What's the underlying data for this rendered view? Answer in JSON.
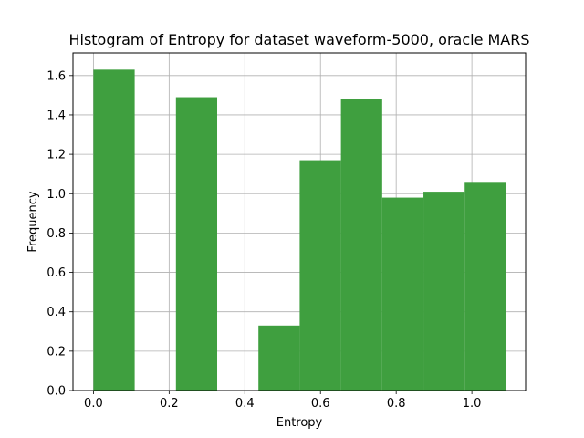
{
  "chart_data": {
    "type": "bar",
    "title": "Histogram of Entropy for dataset waveform-5000, oracle MARS",
    "xlabel": "Entropy",
    "ylabel": "Frequency",
    "xlim": [
      -0.054,
      1.142
    ],
    "ylim": [
      0.0,
      1.715
    ],
    "xticks": [
      0.0,
      0.2,
      0.4,
      0.6,
      0.8,
      1.0
    ],
    "xtick_labels": [
      "0.0",
      "0.2",
      "0.4",
      "0.6",
      "0.8",
      "1.0"
    ],
    "yticks": [
      0.0,
      0.2,
      0.4,
      0.6,
      0.8,
      1.0,
      1.2,
      1.4,
      1.6
    ],
    "ytick_labels": [
      "0.0",
      "0.2",
      "0.4",
      "0.6",
      "0.8",
      "1.0",
      "1.2",
      "1.4",
      "1.6"
    ],
    "grid": true,
    "bar_color": "#3f9f3f",
    "bins": [
      {
        "x0": 0.0,
        "x1": 0.109,
        "value": 1.63
      },
      {
        "x0": 0.109,
        "x1": 0.218,
        "value": 0.0
      },
      {
        "x0": 0.218,
        "x1": 0.327,
        "value": 1.49
      },
      {
        "x0": 0.327,
        "x1": 0.436,
        "value": 0.0
      },
      {
        "x0": 0.436,
        "x1": 0.545,
        "value": 0.33
      },
      {
        "x0": 0.545,
        "x1": 0.654,
        "value": 1.17
      },
      {
        "x0": 0.654,
        "x1": 0.763,
        "value": 1.48
      },
      {
        "x0": 0.763,
        "x1": 0.872,
        "value": 0.98
      },
      {
        "x0": 0.872,
        "x1": 0.981,
        "value": 1.01
      },
      {
        "x0": 0.981,
        "x1": 1.09,
        "value": 1.06
      }
    ]
  }
}
